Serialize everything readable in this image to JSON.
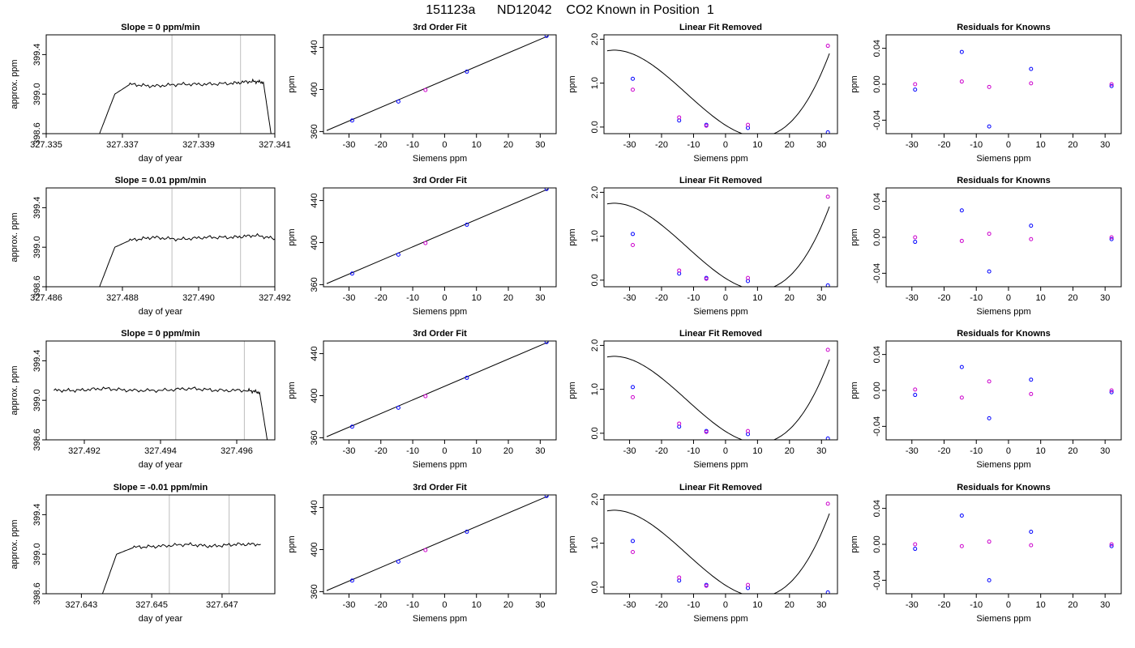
{
  "figure": {
    "title": "151123a      ND12042    CO2 Known in Position  1",
    "colors": {
      "sample": "#0000ff",
      "fit": "#cc00cc",
      "axis": "#000000",
      "gridline": "#bebebe",
      "pointer": "#ff0000"
    }
  },
  "chart_data": [
    {
      "type": "line",
      "row": 1,
      "col": 1,
      "title": "Slope =  0  ppm/min",
      "xlabel": "day of year",
      "ylabel": "approx. ppm",
      "xlim": [
        327.335,
        327.341
      ],
      "ylim": [
        398.6,
        399.6
      ],
      "xticks": [
        327.335,
        327.337,
        327.339,
        327.341
      ],
      "xtick_labels": [
        "327.335",
        "327.337",
        "327.339",
        "327.341"
      ],
      "yticks": [
        398.6,
        399.0,
        399.4
      ],
      "ytick_labels": [
        "398.6",
        "399.0",
        "399.4"
      ],
      "vlines": [
        327.3383,
        327.3401
      ],
      "series": [
        {
          "x": [
            327.3364,
            327.3368,
            327.3372,
            327.3378,
            327.3385,
            327.3392,
            327.3399,
            327.3404,
            327.3407,
            327.3409
          ],
          "y": [
            398.6,
            399.0,
            399.1,
            399.08,
            399.1,
            399.1,
            399.11,
            399.13,
            399.12,
            398.6
          ]
        }
      ]
    },
    {
      "type": "scatter",
      "row": 1,
      "col": 2,
      "title": "3rd Order Fit",
      "xlabel": "Siemens ppm",
      "ylabel": "ppm",
      "xlim": [
        -38,
        35
      ],
      "ylim": [
        358,
        452
      ],
      "xticks": [
        -30,
        -20,
        -10,
        0,
        10,
        20,
        30
      ],
      "xtick_labels": [
        "-30",
        "-20",
        "-10",
        "0",
        "10",
        "20",
        "30"
      ],
      "yticks": [
        360,
        400,
        440
      ],
      "ytick_labels": [
        "360",
        "400",
        "440"
      ],
      "x": [
        -29,
        -14.5,
        -6,
        7,
        32
      ],
      "y": [
        370.5,
        388.5,
        399.5,
        417,
        451
      ],
      "curve": {
        "x": [
          -37,
          32.5
        ],
        "y": [
          361,
          451
        ]
      }
    },
    {
      "type": "scatter",
      "row": 1,
      "col": 3,
      "title": "Linear Fit Removed",
      "xlabel": "Siemens ppm",
      "ylabel": "ppm",
      "xlim": [
        -38,
        35
      ],
      "ylim": [
        -0.15,
        2.1
      ],
      "xticks": [
        -30,
        -20,
        -10,
        0,
        10,
        20,
        30
      ],
      "xtick_labels": [
        "-30",
        "-20",
        "-10",
        "0",
        "10",
        "20",
        "30"
      ],
      "yticks": [
        0.0,
        1.0,
        2.0
      ],
      "ytick_labels": [
        "0.0",
        "1.0",
        "2.0"
      ],
      "series": [
        {
          "name": "",
          "x": [
            -29,
            -14.5,
            -6,
            7,
            32
          ],
          "y": [
            1.1,
            0.15,
            0.05,
            -0.02,
            -0.12
          ]
        },
        {
          "name": "",
          "x": [
            -29,
            -14.5,
            -6,
            7,
            32
          ],
          "y": [
            0.85,
            0.22,
            0.03,
            0.05,
            1.85
          ]
        }
      ],
      "curve_coeffs": [
        0.0426,
        -0.04635,
        0.001575,
        4.3e-05
      ]
    },
    {
      "type": "scatter",
      "row": 1,
      "col": 4,
      "title": "Residuals for Knowns",
      "xlabel": "Siemens ppm",
      "ylabel": "ppm",
      "xlim": [
        -38,
        35
      ],
      "ylim": [
        -0.055,
        0.055
      ],
      "xticks": [
        -30,
        -20,
        -10,
        0,
        10,
        20,
        30
      ],
      "xtick_labels": [
        "-30",
        "-20",
        "-10",
        "0",
        "10",
        "20",
        "30"
      ],
      "yticks": [
        -0.04,
        0.0,
        0.04
      ],
      "ytick_labels": [
        "-0.04",
        "0.00",
        "0.04"
      ],
      "series": [
        {
          "name": "",
          "x": [
            -29,
            -14.5,
            -6,
            7,
            32
          ],
          "y": [
            -0.006,
            0.036,
            -0.047,
            0.017,
            -0.002
          ]
        },
        {
          "name": "",
          "x": [
            -29,
            -14.5,
            -6,
            7,
            32
          ],
          "y": [
            0.0,
            0.003,
            -0.003,
            0.001,
            0.0
          ]
        }
      ]
    },
    {
      "type": "line",
      "row": 2,
      "col": 1,
      "title": "Slope =  0.01  ppm/min",
      "xlabel": "day of year",
      "ylabel": "approx. ppm",
      "xlim": [
        327.486,
        327.492
      ],
      "ylim": [
        398.6,
        399.6
      ],
      "xticks": [
        327.486,
        327.488,
        327.49,
        327.492
      ],
      "xtick_labels": [
        "327.486",
        "327.488",
        "327.490",
        "327.492"
      ],
      "yticks": [
        398.6,
        399.0,
        399.4
      ],
      "ytick_labels": [
        "398.6",
        "399.0",
        "399.4"
      ],
      "vlines": [
        327.4893,
        327.4911
      ],
      "series": [
        {
          "x": [
            327.4874,
            327.4878,
            327.4882,
            327.4888,
            327.4895,
            327.4902,
            327.4909,
            327.4915,
            327.4921
          ],
          "y": [
            398.6,
            399.0,
            399.07,
            399.1,
            399.08,
            399.1,
            399.1,
            399.12,
            399.08
          ]
        }
      ]
    },
    {
      "type": "scatter",
      "row": 2,
      "col": 2,
      "title": "3rd Order Fit",
      "xlabel": "Siemens ppm",
      "ylabel": "ppm",
      "xlim": [
        -38,
        35
      ],
      "ylim": [
        358,
        452
      ],
      "xticks": [
        -30,
        -20,
        -10,
        0,
        10,
        20,
        30
      ],
      "xtick_labels": [
        "-30",
        "-20",
        "-10",
        "0",
        "10",
        "20",
        "30"
      ],
      "yticks": [
        360,
        400,
        440
      ],
      "ytick_labels": [
        "360",
        "400",
        "440"
      ],
      "x": [
        -29,
        -14.5,
        -6,
        7,
        32
      ],
      "y": [
        370.5,
        388.5,
        399.5,
        417,
        451
      ],
      "curve": {
        "x": [
          -37,
          32.5
        ],
        "y": [
          361,
          451
        ]
      }
    },
    {
      "type": "scatter",
      "row": 2,
      "col": 3,
      "title": "Linear Fit Removed",
      "xlabel": "Siemens ppm",
      "ylabel": "ppm",
      "xlim": [
        -38,
        35
      ],
      "ylim": [
        -0.15,
        2.1
      ],
      "xticks": [
        -30,
        -20,
        -10,
        0,
        10,
        20,
        30
      ],
      "xtick_labels": [
        "-30",
        "-20",
        "-10",
        "0",
        "10",
        "20",
        "30"
      ],
      "yticks": [
        0.0,
        1.0,
        2.0
      ],
      "ytick_labels": [
        "0.0",
        "1.0",
        "2.0"
      ],
      "series": [
        {
          "name": "",
          "x": [
            -29,
            -14.5,
            -6,
            7,
            32
          ],
          "y": [
            1.05,
            0.15,
            0.05,
            -0.02,
            -0.12
          ]
        },
        {
          "name": "",
          "x": [
            -29,
            -14.5,
            -6,
            7,
            32
          ],
          "y": [
            0.8,
            0.22,
            0.03,
            0.05,
            1.9
          ]
        }
      ],
      "curve_coeffs": [
        0.0426,
        -0.04635,
        0.001575,
        4.3e-05
      ]
    },
    {
      "type": "scatter",
      "row": 2,
      "col": 4,
      "title": "Residuals for Knowns",
      "xlabel": "Siemens ppm",
      "ylabel": "ppm",
      "xlim": [
        -38,
        35
      ],
      "ylim": [
        -0.055,
        0.055
      ],
      "xticks": [
        -30,
        -20,
        -10,
        0,
        10,
        20,
        30
      ],
      "xtick_labels": [
        "-30",
        "-20",
        "-10",
        "0",
        "10",
        "20",
        "30"
      ],
      "yticks": [
        -0.04,
        0.0,
        0.04
      ],
      "ytick_labels": [
        "-0.04",
        "0.00",
        "0.04"
      ],
      "series": [
        {
          "name": "",
          "x": [
            -29,
            -14.5,
            -6,
            7,
            32
          ],
          "y": [
            -0.005,
            0.03,
            -0.038,
            0.013,
            -0.002
          ]
        },
        {
          "name": "",
          "x": [
            -29,
            -14.5,
            -6,
            7,
            32
          ],
          "y": [
            0.0,
            -0.004,
            0.004,
            -0.002,
            0.0
          ]
        }
      ]
    },
    {
      "type": "line",
      "row": 3,
      "col": 1,
      "title": "Slope =  0  ppm/min",
      "xlabel": "day of year",
      "ylabel": "approx. ppm",
      "xlim": [
        327.491,
        327.497
      ],
      "ylim": [
        398.6,
        399.6
      ],
      "xticks": [
        327.492,
        327.494,
        327.496
      ],
      "xtick_labels": [
        "327.492",
        "327.494",
        "327.496"
      ],
      "yticks": [
        398.6,
        399.0,
        399.4
      ],
      "ytick_labels": [
        "398.6",
        "399.0",
        "399.4"
      ],
      "vlines": [
        327.4944,
        327.4962
      ],
      "series": [
        {
          "x": [
            327.4912,
            327.4918,
            327.4925,
            327.4932,
            327.494,
            327.4948,
            327.4955,
            327.4963,
            327.4966,
            327.4968
          ],
          "y": [
            399.1,
            399.1,
            399.12,
            399.1,
            399.1,
            399.12,
            399.1,
            399.1,
            399.08,
            398.6
          ]
        }
      ]
    },
    {
      "type": "scatter",
      "row": 3,
      "col": 2,
      "title": "3rd Order Fit",
      "xlabel": "Siemens ppm",
      "ylabel": "ppm",
      "xlim": [
        -38,
        35
      ],
      "ylim": [
        358,
        452
      ],
      "xticks": [
        -30,
        -20,
        -10,
        0,
        10,
        20,
        30
      ],
      "xtick_labels": [
        "-30",
        "-20",
        "-10",
        "0",
        "10",
        "20",
        "30"
      ],
      "yticks": [
        360,
        400,
        440
      ],
      "ytick_labels": [
        "360",
        "400",
        "440"
      ],
      "x": [
        -29,
        -14.5,
        -6,
        7,
        32
      ],
      "y": [
        370.5,
        388.5,
        399.5,
        417,
        451
      ],
      "curve": {
        "x": [
          -37,
          32.5
        ],
        "y": [
          361,
          451
        ]
      }
    },
    {
      "type": "scatter",
      "row": 3,
      "col": 3,
      "title": "Linear Fit Removed",
      "xlabel": "Siemens ppm",
      "ylabel": "ppm",
      "xlim": [
        -38,
        35
      ],
      "ylim": [
        -0.15,
        2.1
      ],
      "xticks": [
        -30,
        -20,
        -10,
        0,
        10,
        20,
        30
      ],
      "xtick_labels": [
        "-30",
        "-20",
        "-10",
        "0",
        "10",
        "20",
        "30"
      ],
      "yticks": [
        0.0,
        1.0,
        2.0
      ],
      "ytick_labels": [
        "0.0",
        "1.0",
        "2.0"
      ],
      "series": [
        {
          "name": "",
          "x": [
            -29,
            -14.5,
            -6,
            7,
            32
          ],
          "y": [
            1.05,
            0.15,
            0.05,
            -0.02,
            -0.12
          ]
        },
        {
          "name": "",
          "x": [
            -29,
            -14.5,
            -6,
            7,
            32
          ],
          "y": [
            0.82,
            0.22,
            0.03,
            0.05,
            1.9
          ]
        }
      ],
      "curve_coeffs": [
        0.0426,
        -0.04635,
        0.001575,
        4.3e-05
      ]
    },
    {
      "type": "scatter",
      "row": 3,
      "col": 4,
      "title": "Residuals for Knowns",
      "xlabel": "Siemens ppm",
      "ylabel": "ppm",
      "xlim": [
        -38,
        35
      ],
      "ylim": [
        -0.055,
        0.055
      ],
      "xticks": [
        -30,
        -20,
        -10,
        0,
        10,
        20,
        30
      ],
      "xtick_labels": [
        "-30",
        "-20",
        "-10",
        "0",
        "10",
        "20",
        "30"
      ],
      "yticks": [
        -0.04,
        0.0,
        0.04
      ],
      "ytick_labels": [
        "-0.04",
        "0.00",
        "0.04"
      ],
      "series": [
        {
          "name": "",
          "x": [
            -29,
            -14.5,
            -6,
            7,
            32
          ],
          "y": [
            -0.005,
            0.026,
            -0.031,
            0.012,
            -0.002
          ]
        },
        {
          "name": "",
          "x": [
            -29,
            -14.5,
            -6,
            7,
            32
          ],
          "y": [
            0.001,
            -0.008,
            0.01,
            -0.004,
            0.0
          ]
        }
      ]
    },
    {
      "type": "line",
      "row": 4,
      "col": 1,
      "title": "Slope =  -0.01  ppm/min",
      "xlabel": "day of year",
      "ylabel": "approx. ppm",
      "xlim": [
        327.642,
        327.6485
      ],
      "ylim": [
        398.6,
        399.6
      ],
      "xticks": [
        327.643,
        327.645,
        327.647
      ],
      "xtick_labels": [
        "327.643",
        "327.645",
        "327.647"
      ],
      "yticks": [
        398.6,
        399.0,
        399.4
      ],
      "ytick_labels": [
        "398.6",
        "399.0",
        "399.4"
      ],
      "vlines": [
        327.6455,
        327.6472
      ],
      "series": [
        {
          "x": [
            327.6436,
            327.644,
            327.6445,
            327.6452,
            327.646,
            327.6467,
            327.6474,
            327.6481
          ],
          "y": [
            398.6,
            399.0,
            399.07,
            399.08,
            399.1,
            399.08,
            399.1,
            399.1
          ]
        }
      ]
    },
    {
      "type": "scatter",
      "row": 4,
      "col": 2,
      "title": "3rd Order Fit",
      "xlabel": "Siemens ppm",
      "ylabel": "ppm",
      "xlim": [
        -38,
        35
      ],
      "ylim": [
        358,
        452
      ],
      "xticks": [
        -30,
        -20,
        -10,
        0,
        10,
        20,
        30
      ],
      "xtick_labels": [
        "-30",
        "-20",
        "-10",
        "0",
        "10",
        "20",
        "30"
      ],
      "yticks": [
        360,
        400,
        440
      ],
      "ytick_labels": [
        "360",
        "400",
        "440"
      ],
      "x": [
        -29,
        -14.5,
        -6,
        7,
        32
      ],
      "y": [
        370.5,
        388.5,
        399.5,
        417,
        451
      ],
      "curve": {
        "x": [
          -37,
          32.5
        ],
        "y": [
          361,
          451
        ]
      }
    },
    {
      "type": "scatter",
      "row": 4,
      "col": 3,
      "title": "Linear Fit Removed",
      "xlabel": "Siemens ppm",
      "ylabel": "ppm",
      "xlim": [
        -38,
        35
      ],
      "ylim": [
        -0.15,
        2.1
      ],
      "xticks": [
        -30,
        -20,
        -10,
        0,
        10,
        20,
        30
      ],
      "xtick_labels": [
        "-30",
        "-20",
        "-10",
        "0",
        "10",
        "20",
        "30"
      ],
      "yticks": [
        0.0,
        1.0,
        2.0
      ],
      "ytick_labels": [
        "0.0",
        "1.0",
        "2.0"
      ],
      "series": [
        {
          "name": "",
          "x": [
            -29,
            -14.5,
            -6,
            7,
            32
          ],
          "y": [
            1.05,
            0.15,
            0.05,
            -0.02,
            -0.12
          ]
        },
        {
          "name": "",
          "x": [
            -29,
            -14.5,
            -6,
            7,
            32
          ],
          "y": [
            0.8,
            0.22,
            0.03,
            0.05,
            1.9
          ]
        }
      ],
      "curve_coeffs": [
        0.0426,
        -0.04635,
        0.001575,
        4.3e-05
      ]
    },
    {
      "type": "scatter",
      "row": 4,
      "col": 4,
      "title": "Residuals for Knowns",
      "xlabel": "Siemens ppm",
      "ylabel": "ppm",
      "xlim": [
        -38,
        35
      ],
      "ylim": [
        -0.055,
        0.055
      ],
      "xticks": [
        -30,
        -20,
        -10,
        0,
        10,
        20,
        30
      ],
      "xtick_labels": [
        "-30",
        "-20",
        "-10",
        "0",
        "10",
        "20",
        "30"
      ],
      "yticks": [
        -0.04,
        0.0,
        0.04
      ],
      "ytick_labels": [
        "-0.04",
        "0.00",
        "0.04"
      ],
      "series": [
        {
          "name": "",
          "x": [
            -29,
            -14.5,
            -6,
            7,
            32
          ],
          "y": [
            -0.005,
            0.032,
            -0.04,
            0.014,
            -0.002
          ]
        },
        {
          "name": "",
          "x": [
            -29,
            -14.5,
            -6,
            7,
            32
          ],
          "y": [
            0.0,
            -0.002,
            0.003,
            -0.001,
            0.0
          ]
        }
      ]
    }
  ]
}
